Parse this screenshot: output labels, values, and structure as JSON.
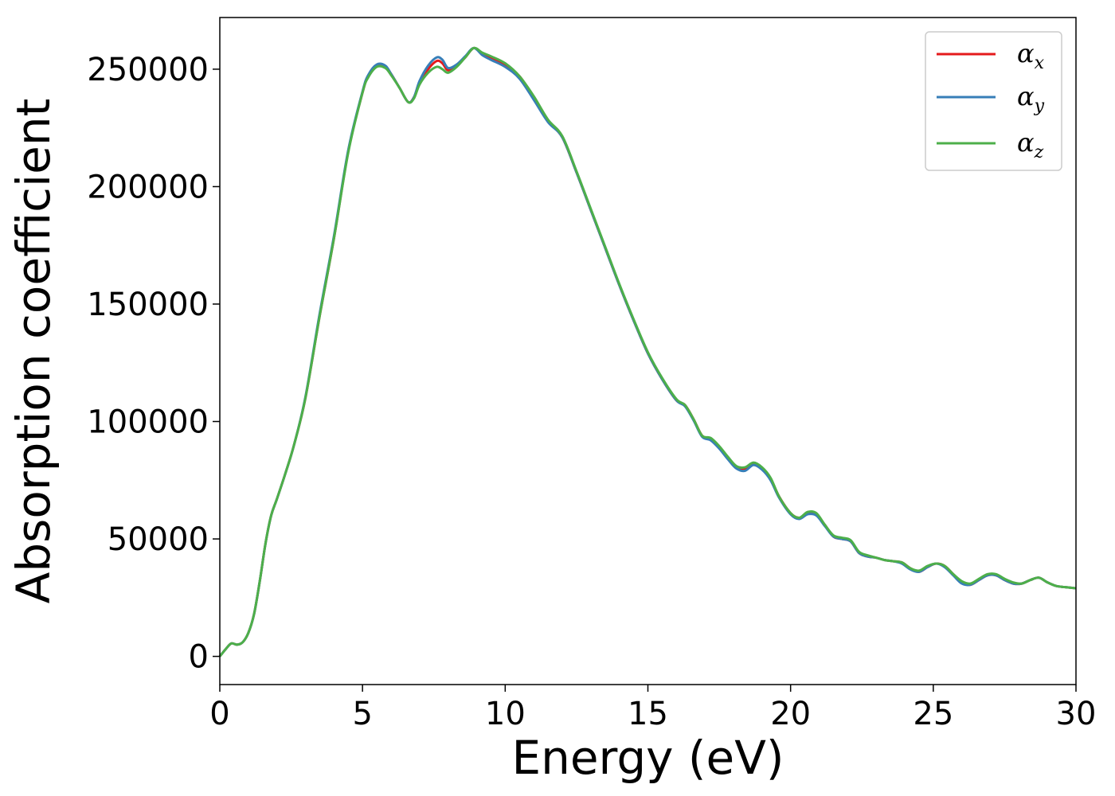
{
  "chart_data": {
    "type": "line",
    "xlabel": "Energy (eV)",
    "ylabel": "Absorption coefficient",
    "xlim": [
      0,
      30
    ],
    "ylim": [
      -12000,
      272000
    ],
    "xticks": [
      0,
      5,
      10,
      15,
      20,
      25,
      30
    ],
    "yticks": [
      0,
      50000,
      100000,
      150000,
      200000,
      250000
    ],
    "grid": false,
    "legend_position": "top-right",
    "x": [
      0,
      0.2,
      0.4,
      0.6,
      0.8,
      1.0,
      1.2,
      1.4,
      1.6,
      1.8,
      2.0,
      2.3,
      2.6,
      3.0,
      3.5,
      4.0,
      4.5,
      5.0,
      5.2,
      5.5,
      5.8,
      6.0,
      6.3,
      6.6,
      6.8,
      7.0,
      7.3,
      7.6,
      7.8,
      8.0,
      8.3,
      8.6,
      8.9,
      9.2,
      9.5,
      10.0,
      10.5,
      11.0,
      11.5,
      12.0,
      12.5,
      13.0,
      13.5,
      14.0,
      14.5,
      15.0,
      15.5,
      16.0,
      16.3,
      16.6,
      16.9,
      17.2,
      17.5,
      17.8,
      18.1,
      18.4,
      18.7,
      19.0,
      19.3,
      19.6,
      20.0,
      20.3,
      20.6,
      20.9,
      21.2,
      21.5,
      21.8,
      22.1,
      22.4,
      22.7,
      23.0,
      23.3,
      23.6,
      23.9,
      24.2,
      24.5,
      24.8,
      25.1,
      25.4,
      25.7,
      26.0,
      26.3,
      26.6,
      26.9,
      27.2,
      27.5,
      27.8,
      28.1,
      28.4,
      28.7,
      29.0,
      29.3,
      29.6,
      30.0
    ],
    "series": [
      {
        "name": "αx",
        "color": "#e41a1c",
        "values": [
          0,
          3000,
          5500,
          5000,
          6000,
          10000,
          18000,
          32000,
          48000,
          60000,
          67000,
          78000,
          90000,
          110000,
          145000,
          178000,
          215000,
          240000,
          247000,
          251500,
          251000,
          248000,
          242000,
          236000,
          238000,
          244000,
          250000,
          253500,
          252500,
          249500,
          251500,
          255000,
          259000,
          256500,
          255000,
          252000,
          247000,
          238000,
          228000,
          221000,
          206000,
          190000,
          174000,
          158000,
          143000,
          129000,
          118000,
          109000,
          107000,
          101000,
          94000,
          92500,
          89000,
          84500,
          80500,
          80000,
          82000,
          80000,
          75500,
          68000,
          61000,
          59000,
          61000,
          60500,
          56000,
          51000,
          50000,
          49000,
          44000,
          42500,
          42000,
          41000,
          40500,
          40000,
          37500,
          36000,
          38000,
          39500,
          38500,
          35000,
          31500,
          30500,
          32500,
          34500,
          34500,
          32500,
          31000,
          31000,
          32500,
          33500,
          31500,
          30000,
          29500,
          29000
        ]
      },
      {
        "name": "αy",
        "color": "#377eb8",
        "values": [
          0,
          3000,
          5500,
          5000,
          6000,
          10000,
          18000,
          32000,
          48000,
          60000,
          67000,
          78000,
          90000,
          110500,
          146000,
          179000,
          215500,
          240500,
          247500,
          252000,
          251500,
          248000,
          242000,
          236000,
          238000,
          245000,
          251500,
          255000,
          254000,
          250500,
          252000,
          255500,
          259000,
          256000,
          254000,
          251000,
          246000,
          237000,
          227500,
          221000,
          206000,
          190000,
          174000,
          158000,
          143000,
          129000,
          118000,
          109000,
          106500,
          100500,
          93500,
          92000,
          88500,
          84000,
          80000,
          79000,
          81500,
          79500,
          75000,
          67500,
          60500,
          58500,
          60500,
          60000,
          55500,
          51000,
          50000,
          49000,
          44000,
          42500,
          42000,
          41000,
          40500,
          39500,
          37000,
          36000,
          38000,
          39500,
          38000,
          34500,
          31000,
          30500,
          32500,
          34500,
          34500,
          32500,
          31000,
          31000,
          32500,
          33500,
          31500,
          30000,
          29500,
          29000
        ]
      },
      {
        "name": "αz",
        "color": "#4daf4a",
        "values": [
          0,
          3000,
          5500,
          5000,
          6000,
          10000,
          18000,
          32000,
          48000,
          60000,
          67000,
          78000,
          90000,
          110000,
          145000,
          178000,
          214500,
          240000,
          246500,
          251000,
          250500,
          247500,
          242000,
          236000,
          237500,
          243500,
          248500,
          251000,
          250000,
          248500,
          251000,
          255000,
          259000,
          257000,
          255500,
          252500,
          247000,
          238500,
          228500,
          221500,
          206500,
          190500,
          174500,
          158500,
          143500,
          129500,
          118500,
          109500,
          107000,
          101000,
          94000,
          93000,
          89500,
          85000,
          81000,
          80500,
          82500,
          80500,
          76000,
          68000,
          61000,
          59000,
          61500,
          61000,
          56000,
          51500,
          50500,
          49500,
          44500,
          43000,
          42000,
          41000,
          40500,
          40000,
          37500,
          36500,
          38500,
          39500,
          38500,
          35000,
          32000,
          31000,
          33000,
          35000,
          35000,
          33000,
          31500,
          31000,
          32500,
          33500,
          31500,
          30000,
          29500,
          29000
        ]
      }
    ]
  }
}
